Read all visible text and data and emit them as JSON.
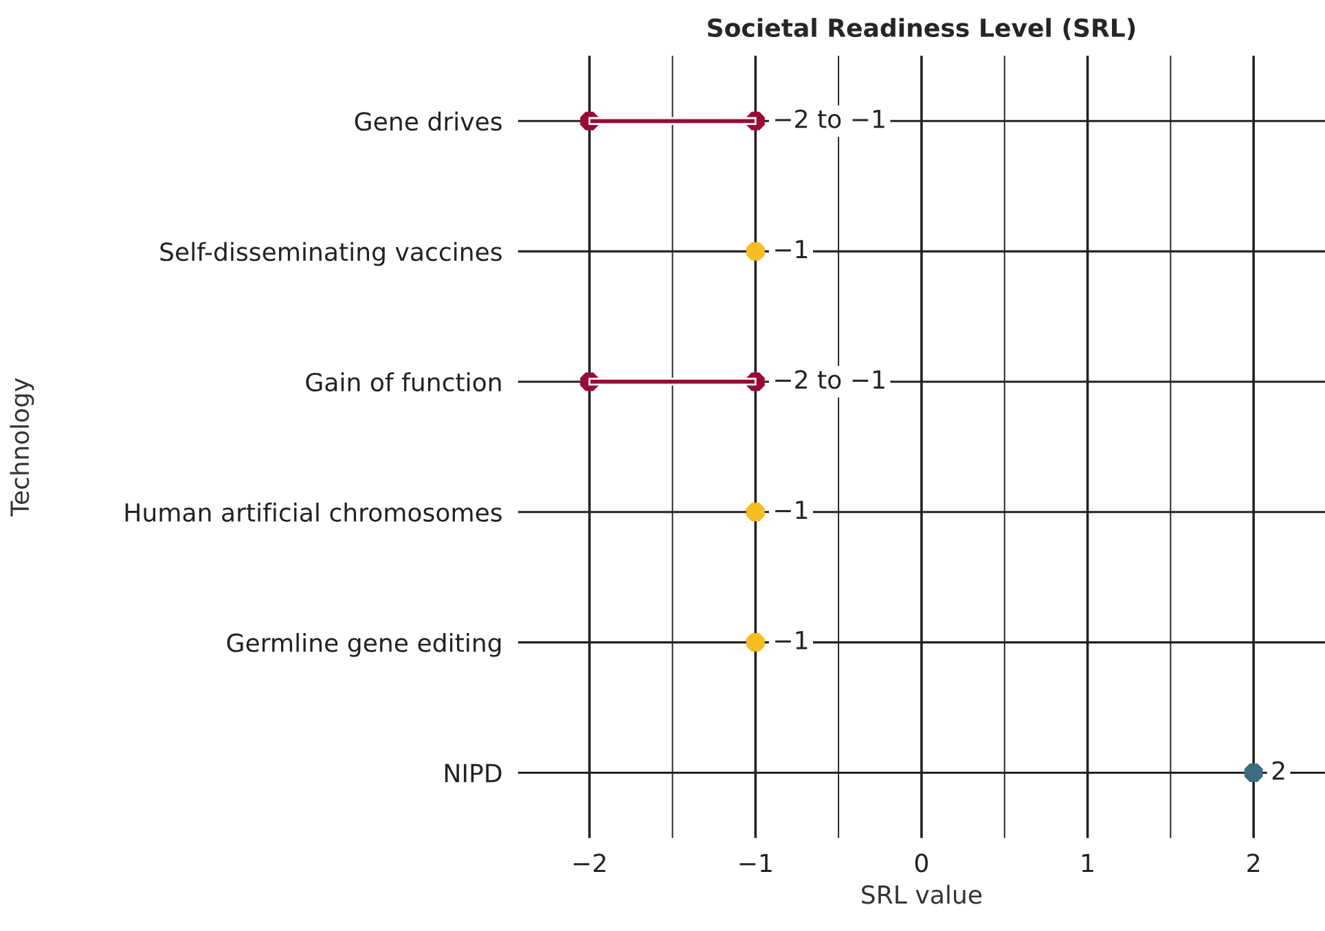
{
  "chart_data": {
    "type": "scatter",
    "orientation": "horizontal",
    "title": "Societal Readiness Level (SRL)",
    "xlabel": "SRL value",
    "ylabel": "Technology",
    "categories": [
      "Gene drives",
      "Self-disseminating vaccines",
      "Gain of function",
      "Human artificial chromosomes",
      "Germline gene editing",
      "NIPD"
    ],
    "series": [
      {
        "type": "bar",
        "base": [
          -2,
          null,
          -2,
          null,
          null,
          null
        ],
        "values": [
          1,
          null,
          1,
          null,
          null,
          null
        ],
        "colors": [
          "#9b0a34",
          null,
          "#9b0a34",
          null,
          null,
          null
        ]
      },
      {
        "values": [
          -1,
          -1,
          -1,
          -1,
          -1,
          2
        ],
        "colors": [
          "#9b0a34",
          "#f7bd1f",
          "#9b0a34",
          "#f7bd1f",
          "#f7bd1f",
          "#3d6b80"
        ],
        "value_labels": [
          "−2 to −1",
          "−1",
          "−2 to −1",
          "−1",
          "−1",
          "2"
        ]
      },
      {
        "values": [
          -2,
          null,
          -2,
          null,
          null,
          null
        ],
        "colors": [
          "#9b0a34",
          null,
          "#9b0a34",
          null,
          null,
          null
        ]
      }
    ],
    "xlim": [
      -2.43,
      2.43
    ],
    "xticks": [
      {
        "value": -2,
        "label": "−2"
      },
      {
        "value": -1.5,
        "label": null
      },
      {
        "value": -1,
        "label": "−1"
      },
      {
        "value": -0.5,
        "label": null
      },
      0,
      {
        "value": 0.5,
        "label": null
      },
      1,
      {
        "value": 1.5,
        "label": null
      },
      2
    ],
    "grid": true,
    "marker": "circle"
  }
}
